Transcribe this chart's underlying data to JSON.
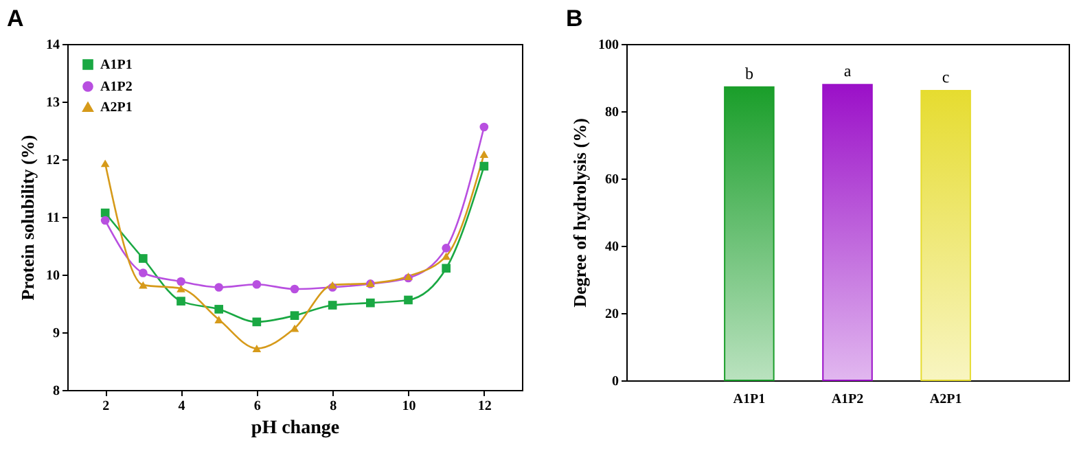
{
  "chart_data": [
    {
      "type": "line",
      "title": "A",
      "xlabel": "pH change",
      "ylabel": "Protein solubility (%)",
      "x": [
        2,
        3,
        4,
        5,
        6,
        7,
        8,
        9,
        10,
        11,
        12
      ],
      "xlim": [
        1,
        13
      ],
      "xticks": [
        2,
        4,
        6,
        8,
        10,
        12
      ],
      "ylim": [
        8,
        14
      ],
      "yticks": [
        8,
        9,
        10,
        11,
        12,
        13,
        14
      ],
      "grid": false,
      "legend": "top left",
      "series": [
        {
          "name": "A1P1",
          "color": "#1aa843",
          "marker": "square",
          "values": [
            11.07,
            10.28,
            9.54,
            9.4,
            9.18,
            9.29,
            9.47,
            9.51,
            9.56,
            10.11,
            11.88
          ]
        },
        {
          "name": "A1P2",
          "color": "#b84fe0",
          "marker": "circle",
          "values": [
            10.94,
            10.03,
            9.88,
            9.78,
            9.83,
            9.75,
            9.78,
            9.84,
            9.94,
            10.46,
            12.56
          ]
        },
        {
          "name": "A2P1",
          "color": "#d69a1a",
          "marker": "triangle",
          "values": [
            11.93,
            9.82,
            9.76,
            9.22,
            8.72,
            9.07,
            9.82,
            9.85,
            9.97,
            10.32,
            12.09
          ]
        }
      ]
    },
    {
      "type": "bar",
      "title": "B",
      "ylabel": "Degree of hydrolysis (%)",
      "categories": [
        "A1P1",
        "A1P2",
        "A2P1"
      ],
      "values": [
        87.2,
        87.9,
        86.1
      ],
      "colors": [
        "#1a9e2a",
        "#9b10c8",
        "#e6dc30"
      ],
      "ylim": [
        0,
        100
      ],
      "yticks": [
        0,
        20,
        40,
        60,
        80,
        100
      ],
      "grid": false,
      "annotations": [
        {
          "text": "b",
          "x": "A1P1",
          "y": 87.2
        },
        {
          "text": "a",
          "x": "A1P2",
          "y": 87.9
        },
        {
          "text": "c",
          "x": "A2P1",
          "y": 86.1
        }
      ]
    }
  ]
}
